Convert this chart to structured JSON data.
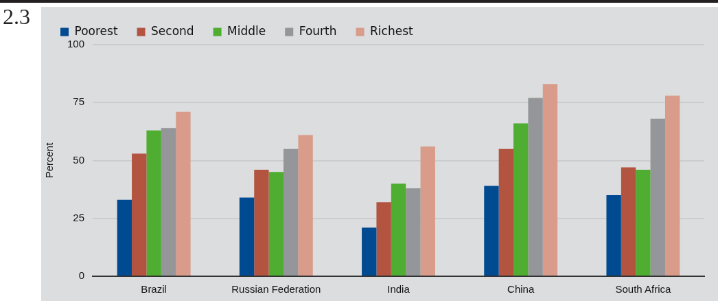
{
  "chart_data": {
    "type": "bar",
    "ylabel": "Percent",
    "annotations": [
      "2.3"
    ],
    "categories": [
      "Brazil",
      "Russian Federation",
      "India",
      "China",
      "South Africa"
    ],
    "series": [
      {
        "name": "Poorest",
        "color": "#004a91",
        "values": [
          33,
          34,
          21,
          39,
          35
        ]
      },
      {
        "name": "Second",
        "color": "#b35441",
        "values": [
          53,
          46,
          32,
          55,
          47
        ]
      },
      {
        "name": "Middle",
        "color": "#4fad31",
        "values": [
          63,
          45,
          40,
          66,
          46
        ]
      },
      {
        "name": "Fourth",
        "color": "#959699",
        "values": [
          64,
          55,
          38,
          77,
          68
        ]
      },
      {
        "name": "Richest",
        "color": "#d99c8a",
        "values": [
          71,
          61,
          56,
          83,
          78
        ]
      }
    ],
    "ylim": [
      0,
      100
    ],
    "yticks": [
      0,
      25,
      50,
      75,
      100
    ],
    "grid": "y",
    "legend": "top left"
  }
}
